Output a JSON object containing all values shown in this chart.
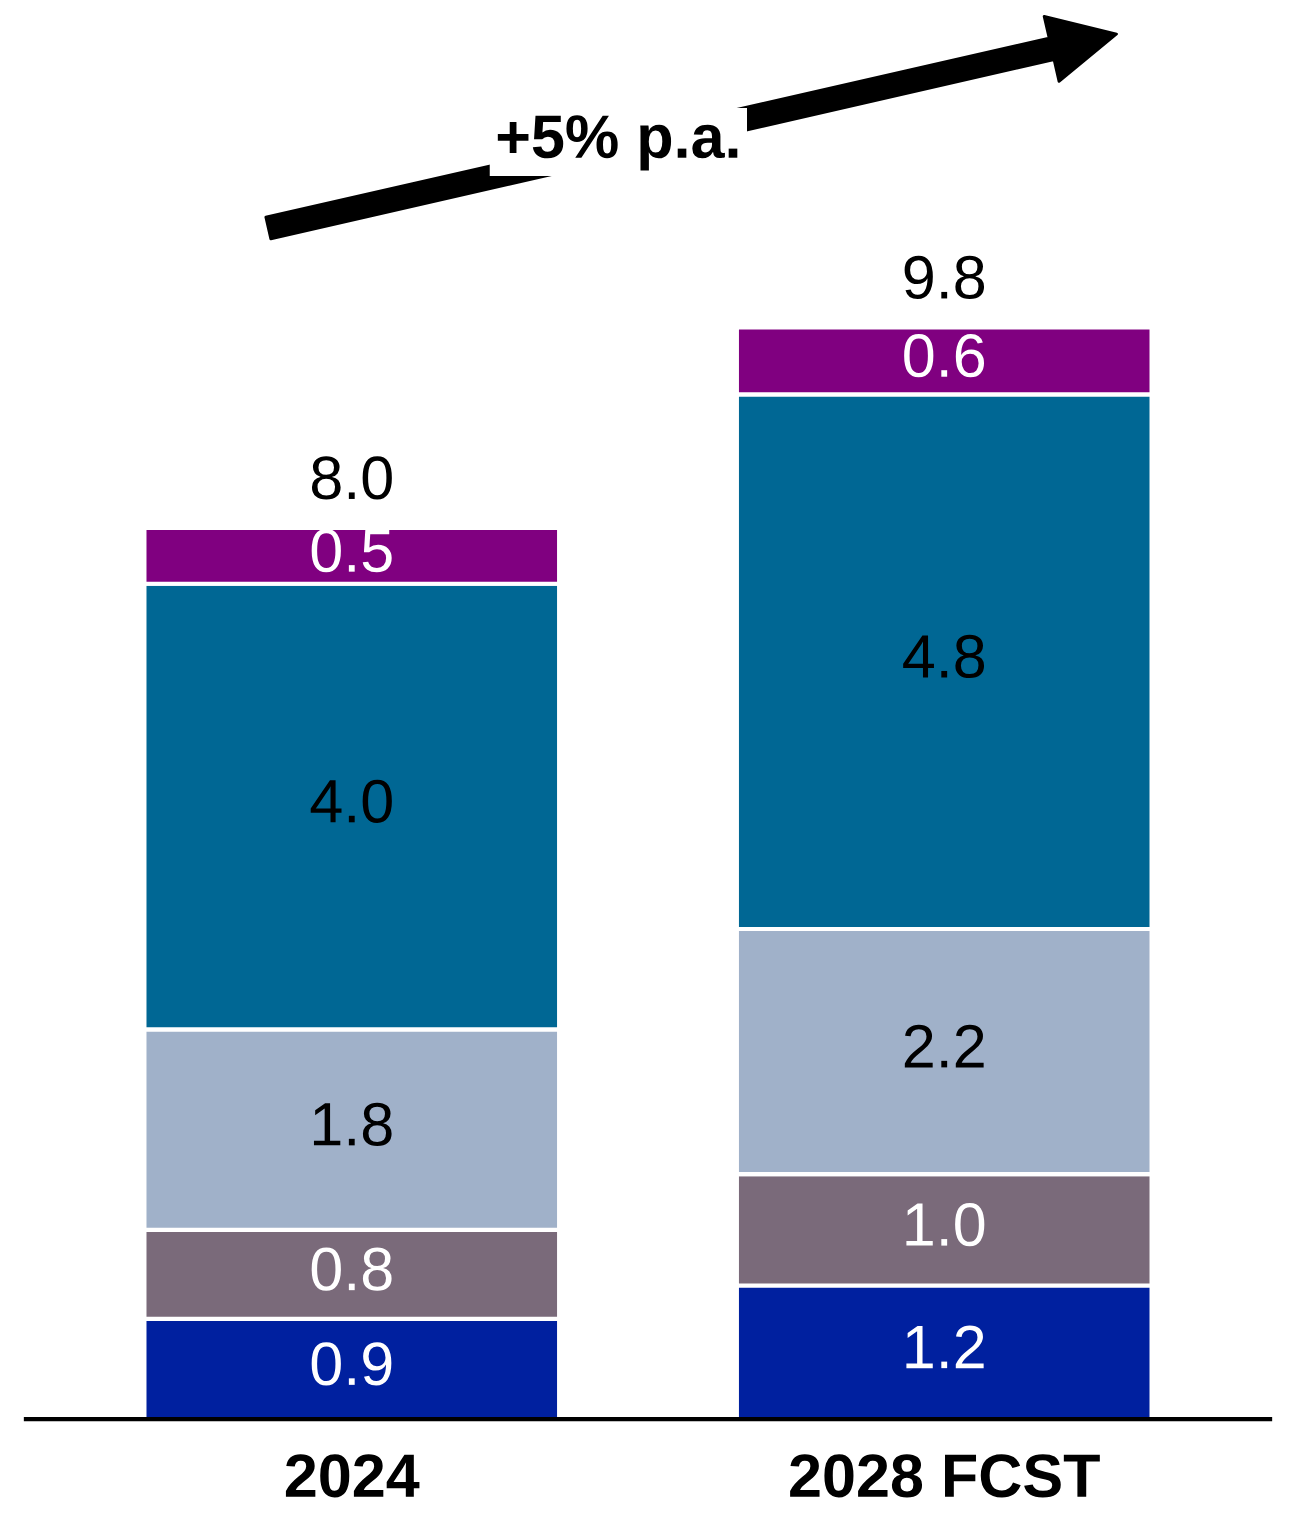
{
  "chart_data": {
    "type": "bar",
    "stacked": true,
    "categories": [
      "2024",
      "2028 FCST"
    ],
    "series": [
      {
        "color": "#00209f",
        "values": [
          0.9,
          1.2
        ],
        "value_labels": [
          "0.9",
          "1.2"
        ]
      },
      {
        "color": "#7a6a7a",
        "values": [
          0.8,
          1.0
        ],
        "value_labels": [
          "0.8",
          "1.0"
        ]
      },
      {
        "color": "#a0b1c9",
        "values": [
          1.8,
          2.2
        ],
        "value_labels": [
          "1.8",
          "2.2"
        ]
      },
      {
        "color": "#006794",
        "values": [
          4.0,
          4.8
        ],
        "value_labels": [
          "4.0",
          "4.8"
        ]
      },
      {
        "color": "#800080",
        "values": [
          0.5,
          0.6
        ],
        "value_labels": [
          "0.5",
          "0.6"
        ]
      }
    ],
    "totals": [
      "8.0",
      "9.8"
    ],
    "annotations": [
      "+5% p.a."
    ],
    "legend": false,
    "grid": false
  }
}
